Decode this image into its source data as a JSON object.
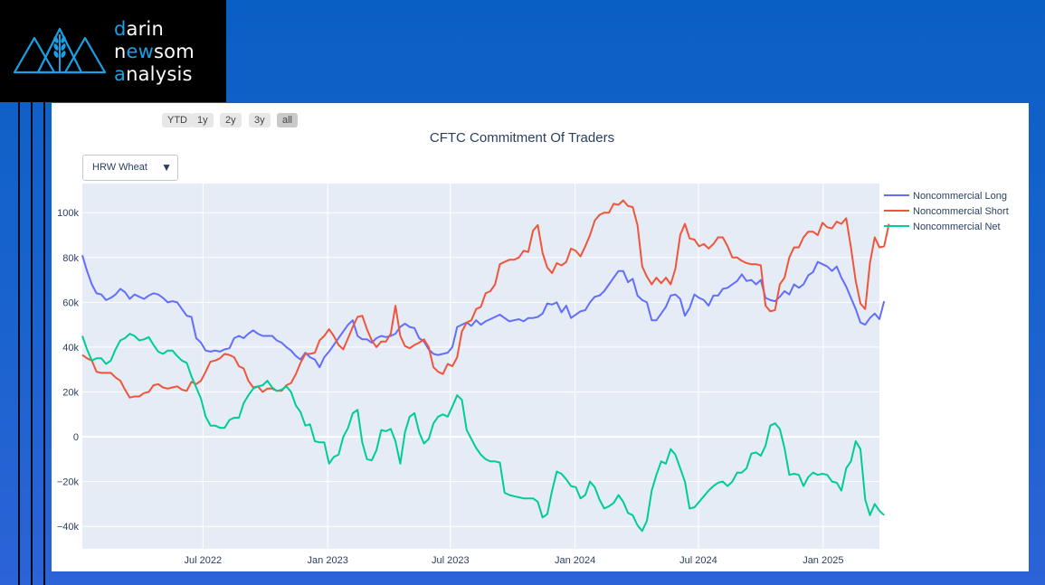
{
  "brand": {
    "line1": {
      "accent": "d",
      "rest": "arin"
    },
    "line2": {
      "pre": "n",
      "accent": "ew",
      "rest": "som"
    },
    "line3": {
      "accent": "a",
      "rest": "nalysis"
    },
    "accent_color": "#1aa0e6",
    "icon": "wheat-mountain-logo-icon"
  },
  "range_selector": [
    "YTD",
    "1y",
    "2y",
    "3y",
    "all"
  ],
  "range_selector_active": "all",
  "dropdown": {
    "selected": "HRW Wheat",
    "caret": "▼"
  },
  "chart_data": {
    "type": "line",
    "title": "CFTC Commitment Of Traders",
    "xlabel": "",
    "ylabel": "",
    "x_start": "2022-01-04",
    "x_step_days": 7,
    "xlim": [
      "2022-01-04",
      "2025-03-25"
    ],
    "ylim": [
      -50000,
      113000
    ],
    "x_ticks": [
      "Jul 2022",
      "Jan 2023",
      "Jul 2023",
      "Jan 2024",
      "Jul 2024",
      "Jan 2025"
    ],
    "x_tick_dates": [
      "2022-07-01",
      "2023-01-01",
      "2023-07-01",
      "2024-01-01",
      "2024-07-01",
      "2025-01-01"
    ],
    "y_ticks": [
      {
        "value": 100000,
        "label": "100k"
      },
      {
        "value": 80000,
        "label": "80k"
      },
      {
        "value": 60000,
        "label": "60k"
      },
      {
        "value": 40000,
        "label": "40k"
      },
      {
        "value": 20000,
        "label": "20k"
      },
      {
        "value": 0,
        "label": "0"
      },
      {
        "value": -20000,
        "label": "−20k"
      },
      {
        "value": -40000,
        "label": "−40k"
      }
    ],
    "legend_position": "right",
    "grid": true,
    "series": [
      {
        "name": "Noncommercial Long",
        "color": "#636efa",
        "values": [
          81000,
          74000,
          68000,
          64000,
          63500,
          61000,
          62000,
          63500,
          66000,
          64500,
          61500,
          63500,
          62500,
          61500,
          63000,
          64000,
          63500,
          62000,
          60000,
          60500,
          60000,
          57000,
          54000,
          53500,
          44000,
          42000,
          38500,
          38000,
          38500,
          38000,
          39000,
          39500,
          44000,
          45000,
          44000,
          46000,
          47500,
          46000,
          45000,
          45000,
          45000,
          43000,
          42000,
          40000,
          38500,
          36000,
          34500,
          37500,
          35500,
          34500,
          31000,
          35500,
          38000,
          41000,
          44000,
          47000,
          50000,
          52000,
          45000,
          43500,
          43500,
          42000,
          44000,
          45000,
          44500,
          45000,
          46000,
          49000,
          50500,
          49000,
          48500,
          44000,
          42500,
          39000,
          37000,
          36500,
          37000,
          37500,
          40000,
          49000,
          50000,
          51000,
          49500,
          52000,
          50000,
          51500,
          52500,
          53500,
          54500,
          53000,
          51500,
          52000,
          52500,
          51500,
          53000,
          53000,
          53500,
          55000,
          59500,
          59000,
          60000,
          55500,
          58500,
          53000,
          54500,
          56000,
          56500,
          60000,
          62500,
          63000,
          65000,
          68000,
          71000,
          74000,
          74000,
          69000,
          70500,
          63000,
          61000,
          60000,
          52000,
          52000,
          55000,
          58000,
          63000,
          63500,
          61500,
          54000,
          57500,
          63500,
          62000,
          61000,
          58500,
          63000,
          63000,
          66000,
          66500,
          68000,
          69500,
          72500,
          69500,
          70000,
          68000,
          70000,
          62000,
          61000,
          60500,
          62500,
          65000,
          63500,
          68000,
          66500,
          68000,
          72000,
          73500,
          78000,
          77000,
          76000,
          74000,
          76000,
          71000,
          67000,
          62000,
          57000,
          51000,
          50000,
          53000,
          55000,
          52500,
          60500
        ]
      },
      {
        "name": "Noncommercial Short",
        "color": "#ef553b",
        "values": [
          36500,
          35000,
          34000,
          29000,
          28500,
          28500,
          28500,
          26500,
          25000,
          21000,
          17500,
          18000,
          18000,
          19500,
          20000,
          23000,
          23500,
          22000,
          21500,
          22000,
          22500,
          21000,
          20500,
          24500,
          23500,
          25000,
          29000,
          33500,
          34000,
          35000,
          37000,
          36500,
          35500,
          31500,
          30500,
          25000,
          22000,
          22500,
          20000,
          21500,
          21500,
          20500,
          20500,
          23000,
          24000,
          28000,
          33000,
          37000,
          37000,
          37500,
          43000,
          45000,
          48000,
          45000,
          41000,
          39000,
          44000,
          49000,
          53500,
          54000,
          48000,
          43000,
          40000,
          42500,
          42500,
          46000,
          58500,
          45000,
          40500,
          39500,
          41000,
          42000,
          43500,
          40000,
          31000,
          29000,
          28000,
          32500,
          31500,
          35500,
          47000,
          51000,
          52000,
          57000,
          58000,
          64000,
          65000,
          68000,
          77000,
          78000,
          79000,
          79000,
          80000,
          83000,
          82500,
          92000,
          94500,
          82000,
          75500,
          73000,
          77500,
          76500,
          78000,
          84000,
          83000,
          80500,
          85000,
          90000,
          96500,
          99000,
          100000,
          100000,
          104000,
          103500,
          105500,
          103000,
          102500,
          94500,
          76000,
          71500,
          68000,
          71000,
          68500,
          71000,
          68000,
          75000,
          90000,
          95000,
          88500,
          88000,
          85000,
          86000,
          84000,
          86000,
          89000,
          89000,
          85000,
          80000,
          80000,
          78500,
          77500,
          77000,
          77000,
          76500,
          58500,
          56000,
          56500,
          68000,
          71000,
          80000,
          84500,
          84500,
          89000,
          91500,
          91500,
          90000,
          95500,
          93500,
          93000,
          96000,
          95000,
          97500,
          84500,
          69500,
          59500,
          57000,
          77500,
          89000,
          84500,
          85000,
          95000
        ]
      },
      {
        "name": "Noncommercial Net",
        "color": "#00cc96",
        "values": [
          45000,
          39000,
          34000,
          35000,
          35000,
          32500,
          34000,
          39000,
          43000,
          44000,
          46000,
          45000,
          43000,
          43500,
          44500,
          41000,
          38000,
          37000,
          38500,
          38500,
          36000,
          34000,
          33000,
          27000,
          22000,
          17000,
          9000,
          5000,
          5000,
          4000,
          4000,
          7500,
          8500,
          8500,
          15000,
          18500,
          21500,
          22500,
          23000,
          25000,
          22000,
          20500,
          21000,
          22500,
          20000,
          14000,
          11000,
          5000,
          5500,
          -2000,
          -2500,
          -2500,
          -12000,
          -9000,
          -8000,
          0,
          4000,
          10500,
          12000,
          -2500,
          -10000,
          -10500,
          -6000,
          3000,
          2500,
          3500,
          -2000,
          -12000,
          2000,
          9000,
          10500,
          2000,
          -3000,
          -1000,
          6000,
          9000,
          10000,
          9000,
          13500,
          18500,
          16500,
          3000,
          -1000,
          -5000,
          -8000,
          -10000,
          -11000,
          -11000,
          -11500,
          -25000,
          -26000,
          -26500,
          -27000,
          -27500,
          -27500,
          -27500,
          -29000,
          -36000,
          -34500,
          -24000,
          -15500,
          -16500,
          -19000,
          -22000,
          -22500,
          -27500,
          -26000,
          -20000,
          -22500,
          -28000,
          -32000,
          -31000,
          -29500,
          -26000,
          -29000,
          -34000,
          -35000,
          -39500,
          -42000,
          -37500,
          -24000,
          -17000,
          -11000,
          -12000,
          -5500,
          -8000,
          -14000,
          -20000,
          -32000,
          -31500,
          -29000,
          -26500,
          -24000,
          -22000,
          -20500,
          -20000,
          -22000,
          -20000,
          -16000,
          -16000,
          -14000,
          -7500,
          -7000,
          -8500,
          -4000,
          5000,
          6000,
          3500,
          -5000,
          -17000,
          -16500,
          -17000,
          -22000,
          -18000,
          -16000,
          -17000,
          -16500,
          -17000,
          -20000,
          -20500,
          -24000,
          -14000,
          -11000,
          -2000,
          -5500,
          -28000,
          -35000,
          -30000,
          -33000,
          -35000
        ]
      }
    ]
  }
}
